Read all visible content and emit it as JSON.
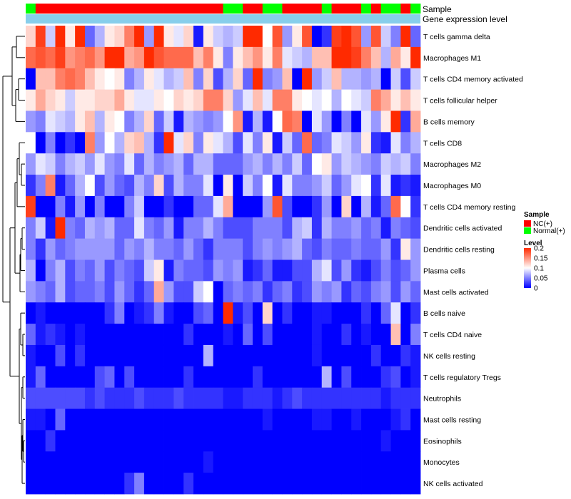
{
  "chart_data": {
    "type": "heatmap",
    "annotation_labels": [
      "Sample",
      "Gene expression level"
    ],
    "rows": [
      "T cells gamma delta",
      "Macrophages M1",
      "T cells CD4 memory activated",
      "T cells follicular helper",
      "B cells memory",
      "T cells CD8",
      "Macrophages M2",
      "Macrophages M0",
      "T cells CD4 memory resting",
      "Dendritic cells activated",
      "Dendritic cells resting",
      "Plasma cells",
      "Mast cells activated",
      "B cells naive",
      "T cells CD4 naive",
      "NK cells resting",
      "T cells regulatory  Tregs",
      "Neutrophils",
      "Mast cells resting",
      "Eosinophils",
      "Monocytes",
      "NK cells activated"
    ],
    "sample_groups": [
      "N",
      "C",
      "C",
      "C",
      "C",
      "C",
      "C",
      "C",
      "C",
      "C",
      "C",
      "C",
      "C",
      "C",
      "C",
      "C",
      "C",
      "C",
      "C",
      "C",
      "N",
      "N",
      "C",
      "C",
      "N",
      "N",
      "C",
      "C",
      "C",
      "C",
      "N",
      "C",
      "C",
      "C",
      "N",
      "C",
      "N",
      "N",
      "C",
      "N"
    ],
    "values": [
      [
        0.12,
        0.19,
        0.08,
        0.2,
        0.11,
        0.22,
        0.04,
        0.07,
        0.11,
        0.12,
        0.16,
        0.2,
        0.06,
        0.23,
        0.11,
        0.09,
        0.12,
        0.01,
        0.11,
        0.08,
        0.07,
        0.08,
        0.22,
        0.21,
        0.1,
        0.18,
        0.06,
        0.11,
        0.18,
        0.0,
        0.02,
        0.19,
        0.22,
        0.18,
        0.06,
        0.18,
        0.08,
        0.05,
        0.2,
        0.04
      ],
      [
        0.17,
        0.18,
        0.17,
        0.19,
        0.15,
        0.16,
        0.17,
        0.15,
        0.21,
        0.2,
        0.14,
        0.15,
        0.2,
        0.18,
        0.17,
        0.17,
        0.17,
        0.13,
        0.16,
        0.11,
        0.05,
        0.11,
        0.13,
        0.15,
        0.11,
        0.16,
        0.09,
        0.08,
        0.07,
        0.13,
        0.13,
        0.23,
        0.2,
        0.19,
        0.16,
        0.13,
        0.07,
        0.14,
        0.11,
        0.22
      ],
      [
        0.0,
        0.13,
        0.13,
        0.16,
        0.17,
        0.16,
        0.13,
        0.11,
        0.1,
        0.11,
        0.05,
        0.07,
        0.11,
        0.09,
        0.07,
        0.08,
        0.13,
        0.05,
        0.12,
        0.03,
        0.07,
        0.12,
        0.04,
        0.23,
        0.05,
        0.06,
        0.13,
        0.0,
        0.23,
        0.06,
        0.08,
        0.13,
        0.07,
        0.07,
        0.06,
        0.07,
        0.0,
        0.08,
        0.03,
        0.08
      ],
      [
        0.11,
        0.14,
        0.12,
        0.11,
        0.08,
        0.11,
        0.11,
        0.12,
        0.12,
        0.14,
        0.11,
        0.09,
        0.09,
        0.11,
        0.1,
        0.12,
        0.11,
        0.12,
        0.16,
        0.16,
        0.12,
        0.06,
        0.09,
        0.13,
        0.09,
        0.16,
        0.16,
        0.11,
        0.1,
        0.09,
        0.1,
        0.07,
        0.1,
        0.09,
        0.08,
        0.16,
        0.14,
        0.11,
        0.13,
        0.11
      ],
      [
        0.06,
        0.05,
        0.09,
        0.08,
        0.07,
        0.11,
        0.13,
        0.07,
        0.11,
        0.1,
        0.05,
        0.07,
        0.12,
        0.04,
        0.08,
        0.01,
        0.07,
        0.06,
        0.05,
        0.06,
        0.1,
        0.15,
        0.01,
        0.07,
        0.01,
        0.1,
        0.17,
        0.16,
        0.0,
        0.09,
        0.06,
        0.0,
        0.05,
        0.0,
        0.09,
        0.06,
        0.11,
        0.22,
        0.02,
        0.14
      ],
      [
        0.1,
        0.0,
        0.05,
        0.0,
        0.02,
        0.0,
        0.16,
        0.06,
        0.1,
        0.07,
        0.12,
        0.13,
        0.07,
        0.02,
        0.22,
        0.09,
        0.12,
        0.05,
        0.11,
        0.09,
        0.07,
        0.03,
        0.09,
        0.05,
        0.11,
        0.01,
        0.08,
        0.04,
        0.17,
        0.04,
        0.05,
        0.09,
        0.08,
        0.06,
        0.11,
        0.02,
        0.01,
        0.09,
        0.05,
        0.07
      ],
      [
        0.06,
        0.09,
        0.08,
        0.05,
        0.07,
        0.08,
        0.06,
        0.09,
        0.06,
        0.05,
        0.09,
        0.04,
        0.07,
        0.05,
        0.06,
        0.07,
        0.04,
        0.07,
        0.07,
        0.04,
        0.04,
        0.04,
        0.06,
        0.07,
        0.05,
        0.07,
        0.05,
        0.08,
        0.04,
        0.1,
        0.11,
        0.06,
        0.08,
        0.07,
        0.06,
        0.05,
        0.08,
        0.07,
        0.08,
        0.05
      ],
      [
        0.02,
        0.05,
        0.16,
        0.01,
        0.04,
        0.07,
        0.1,
        0.03,
        0.06,
        0.04,
        0.03,
        0.07,
        0.05,
        0.12,
        0.03,
        0.07,
        0.05,
        0.05,
        0.09,
        0.0,
        0.11,
        0.0,
        0.08,
        0.05,
        0.1,
        0.01,
        0.09,
        0.05,
        0.05,
        0.06,
        0.08,
        0.04,
        0.06,
        0.09,
        0.1,
        0.02,
        0.09,
        0.01,
        0.02,
        0.01
      ],
      [
        0.19,
        0.0,
        0.0,
        0.05,
        0.01,
        0.06,
        0.0,
        0.05,
        0.0,
        0.0,
        0.05,
        0.08,
        0.0,
        0.0,
        0.02,
        0.0,
        0.0,
        0.04,
        0.04,
        0.09,
        0.14,
        0.0,
        0.0,
        0.0,
        0.06,
        0.18,
        0.03,
        0.0,
        0.0,
        0.02,
        0.06,
        0.0,
        0.12,
        0.0,
        0.07,
        0.01,
        0.04,
        0.17,
        0.1,
        0.02
      ],
      [
        0.05,
        0.08,
        0.01,
        0.21,
        0.05,
        0.04,
        0.07,
        0.06,
        0.07,
        0.04,
        0.04,
        0.09,
        0.05,
        0.04,
        0.06,
        0.01,
        0.05,
        0.05,
        0.07,
        0.05,
        0.03,
        0.03,
        0.03,
        0.05,
        0.05,
        0.05,
        0.03,
        0.07,
        0.08,
        0.02,
        0.07,
        0.05,
        0.05,
        0.06,
        0.04,
        0.05,
        0.01,
        0.05,
        0.04,
        0.03
      ],
      [
        0.05,
        0.02,
        0.06,
        0.04,
        0.05,
        0.06,
        0.06,
        0.06,
        0.06,
        0.04,
        0.06,
        0.05,
        0.07,
        0.05,
        0.05,
        0.04,
        0.06,
        0.04,
        0.02,
        0.05,
        0.05,
        0.05,
        0.03,
        0.05,
        0.06,
        0.05,
        0.06,
        0.07,
        0.04,
        0.03,
        0.05,
        0.04,
        0.04,
        0.05,
        0.04,
        0.04,
        0.06,
        0.02,
        0.11,
        0.06
      ],
      [
        0.07,
        0.0,
        0.05,
        0.07,
        0.03,
        0.05,
        0.04,
        0.06,
        0.03,
        0.05,
        0.04,
        0.03,
        0.08,
        0.11,
        0.01,
        0.05,
        0.04,
        0.04,
        0.03,
        0.06,
        0.05,
        0.06,
        0.01,
        0.02,
        0.04,
        0.01,
        0.01,
        0.03,
        0.03,
        0.07,
        0.09,
        0.03,
        0.06,
        0.02,
        0.01,
        0.03,
        0.05,
        0.03,
        0.04,
        0.06
      ],
      [
        0.06,
        0.05,
        0.04,
        0.07,
        0.03,
        0.04,
        0.04,
        0.05,
        0.03,
        0.06,
        0.04,
        0.02,
        0.04,
        0.14,
        0.06,
        0.03,
        0.03,
        0.08,
        0.1,
        0.0,
        0.04,
        0.05,
        0.04,
        0.05,
        0.02,
        0.04,
        0.05,
        0.02,
        0.03,
        0.06,
        0.05,
        0.06,
        0.02,
        0.04,
        0.03,
        0.05,
        0.06,
        0.03,
        0.06,
        0.04
      ],
      [
        0.0,
        0.01,
        0.0,
        0.0,
        0.0,
        0.0,
        0.0,
        0.0,
        0.02,
        0.05,
        0.0,
        0.01,
        0.02,
        0.05,
        0.01,
        0.0,
        0.0,
        0.03,
        0.04,
        0.0,
        0.23,
        0.01,
        0.03,
        0.0,
        0.12,
        0.0,
        0.02,
        0.0,
        0.0,
        0.01,
        0.01,
        0.0,
        0.0,
        0.0,
        0.02,
        0.0,
        0.04,
        0.09,
        0.0,
        0.02
      ],
      [
        0.04,
        0.01,
        0.02,
        0.01,
        0.0,
        0.01,
        0.0,
        0.0,
        0.0,
        0.0,
        0.0,
        0.0,
        0.0,
        0.0,
        0.0,
        0.0,
        0.02,
        0.0,
        0.0,
        0.0,
        0.01,
        0.0,
        0.04,
        0.0,
        0.03,
        0.0,
        0.0,
        0.0,
        0.0,
        0.01,
        0.0,
        0.0,
        0.02,
        0.0,
        0.01,
        0.0,
        0.0,
        0.13,
        0.0,
        0.05
      ],
      [
        0.01,
        0.0,
        0.0,
        0.03,
        0.0,
        0.02,
        0.0,
        0.0,
        0.0,
        0.0,
        0.0,
        0.0,
        0.0,
        0.0,
        0.0,
        0.0,
        0.0,
        0.0,
        0.07,
        0.0,
        0.0,
        0.0,
        0.0,
        0.0,
        0.0,
        0.0,
        0.0,
        0.0,
        0.0,
        0.01,
        0.0,
        0.0,
        0.0,
        0.0,
        0.0,
        0.02,
        0.0,
        0.0,
        0.02,
        0.01
      ],
      [
        0.01,
        0.04,
        0.0,
        0.0,
        0.0,
        0.0,
        0.0,
        0.03,
        0.04,
        0.0,
        0.03,
        0.0,
        0.0,
        0.0,
        0.0,
        0.0,
        0.02,
        0.0,
        0.0,
        0.0,
        0.0,
        0.0,
        0.0,
        0.02,
        0.0,
        0.0,
        0.0,
        0.0,
        0.0,
        0.0,
        0.07,
        0.0,
        0.03,
        0.0,
        0.0,
        0.0,
        0.02,
        0.03,
        0.0,
        0.01
      ],
      [
        0.03,
        0.03,
        0.03,
        0.03,
        0.03,
        0.03,
        0.02,
        0.03,
        0.02,
        0.02,
        0.02,
        0.03,
        0.02,
        0.02,
        0.02,
        0.03,
        0.02,
        0.02,
        0.02,
        0.02,
        0.01,
        0.01,
        0.02,
        0.02,
        0.02,
        0.01,
        0.02,
        0.03,
        0.02,
        0.02,
        0.02,
        0.02,
        0.02,
        0.02,
        0.02,
        0.02,
        0.01,
        0.02,
        0.02,
        0.02
      ],
      [
        0.01,
        0.01,
        0.0,
        0.04,
        0.0,
        0.0,
        0.0,
        0.0,
        0.0,
        0.0,
        0.0,
        0.0,
        0.0,
        0.0,
        0.0,
        0.0,
        0.0,
        0.0,
        0.0,
        0.0,
        0.0,
        0.0,
        0.0,
        0.0,
        0.01,
        0.0,
        0.0,
        0.0,
        0.0,
        0.01,
        0.01,
        0.0,
        0.0,
        0.01,
        0.0,
        0.0,
        0.0,
        0.01,
        0.02,
        0.0
      ],
      [
        0.0,
        0.0,
        0.02,
        0.0,
        0.0,
        0.0,
        0.0,
        0.0,
        0.0,
        0.0,
        0.0,
        0.0,
        0.0,
        0.0,
        0.0,
        0.0,
        0.0,
        0.0,
        0.0,
        0.0,
        0.0,
        0.0,
        0.0,
        0.0,
        0.0,
        0.0,
        0.0,
        0.0,
        0.0,
        0.0,
        0.0,
        0.0,
        0.0,
        0.0,
        0.0,
        0.0,
        0.01,
        0.0,
        0.0,
        0.0
      ],
      [
        0.0,
        0.0,
        0.0,
        0.0,
        0.0,
        0.0,
        0.0,
        0.0,
        0.0,
        0.0,
        0.0,
        0.0,
        0.0,
        0.0,
        0.0,
        0.0,
        0.0,
        0.0,
        0.01,
        0.0,
        0.0,
        0.0,
        0.0,
        0.0,
        0.0,
        0.0,
        0.0,
        0.0,
        0.0,
        0.0,
        0.0,
        0.0,
        0.0,
        0.0,
        0.0,
        0.0,
        0.0,
        0.0,
        0.0,
        0.0
      ],
      [
        0.0,
        0.0,
        0.0,
        0.0,
        0.0,
        0.0,
        0.0,
        0.0,
        0.0,
        0.0,
        0.02,
        0.05,
        0.0,
        0.0,
        0.0,
        0.0,
        0.02,
        0.0,
        0.0,
        0.0,
        0.0,
        0.0,
        0.0,
        0.0,
        0.0,
        0.0,
        0.0,
        0.0,
        0.0,
        0.0,
        0.0,
        0.0,
        0.0,
        0.0,
        0.0,
        0.0,
        0.0,
        0.0,
        0.0,
        0.0
      ]
    ],
    "color_scale": {
      "domain": [
        0,
        0.1,
        0.2
      ],
      "colors": [
        "#0000ff",
        "#ffffff",
        "#ff2a00"
      ],
      "ticks": [
        "0.2",
        "0.15",
        "0.1",
        "0.05",
        "0"
      ]
    },
    "legend": {
      "sample_title": "Sample",
      "sample_entries": [
        {
          "label": "NC(+)",
          "color": "#ff0000"
        },
        {
          "label": "Normal(+)",
          "color": "#00ff00"
        }
      ],
      "level_title": "Level"
    },
    "expression_bar_color": "#87ceeb",
    "dendrogram_color": "#000000"
  }
}
